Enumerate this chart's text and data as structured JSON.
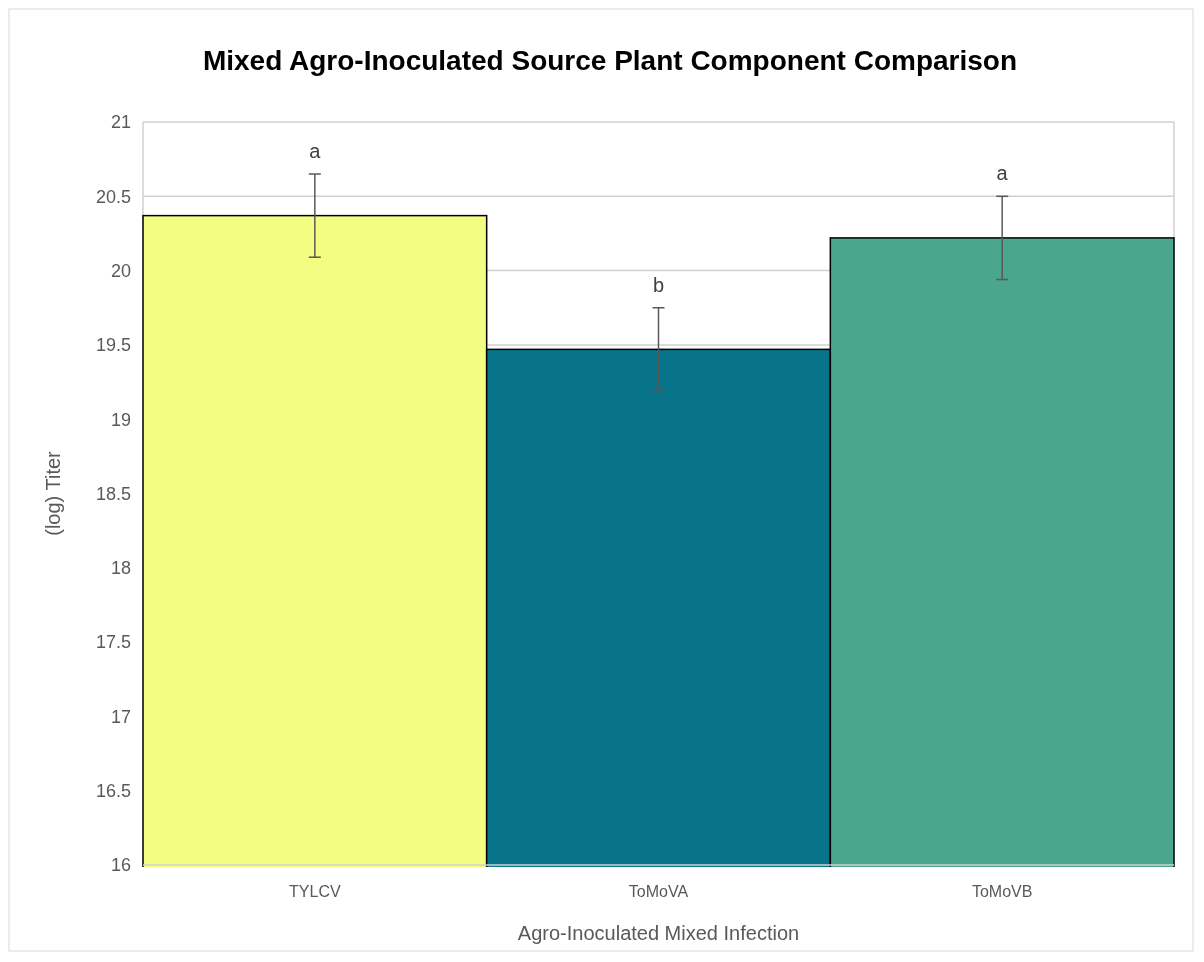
{
  "chart_data": {
    "type": "bar",
    "title": "Mixed Agro-Inoculated Source Plant Component Comparison",
    "xlabel": "Agro-Inoculated Mixed Infection",
    "ylabel": "(log) Titer",
    "categories": [
      "TYLCV",
      "ToMoVA",
      "ToMoVB"
    ],
    "values": [
      20.37,
      19.47,
      20.22
    ],
    "colors": [
      "#f2fd82",
      "#07748a",
      "#4ba68f"
    ],
    "errors": [
      0.28,
      0.28,
      0.28
    ],
    "ylim": [
      16,
      21
    ],
    "yticks": [
      16,
      16.5,
      17,
      17.5,
      18,
      18.5,
      19,
      19.5,
      20,
      20.5,
      21
    ],
    "grid": "y",
    "annotations": [
      "a",
      "b",
      "a"
    ]
  }
}
